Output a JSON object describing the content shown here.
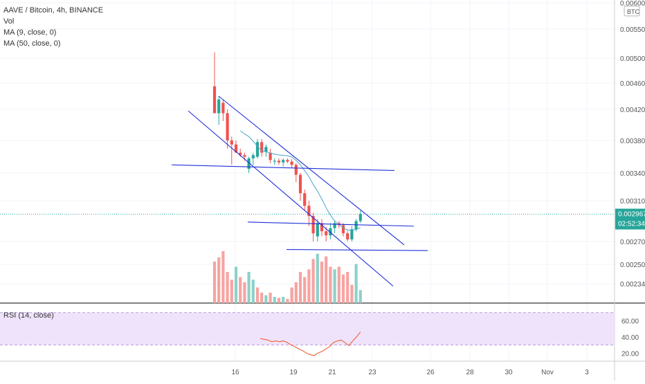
{
  "header": {
    "symbol_line": "AAVE / Bitcoin, 4h, BINANCE",
    "indicators": [
      "Vol",
      "MA (9, close, 0)",
      "MA (50, close, 0)"
    ]
  },
  "rsi": {
    "label": "RSI (14, close)",
    "upper": 70,
    "lower": 30,
    "values": [
      38,
      37,
      36,
      34,
      35,
      34,
      35,
      33,
      30,
      28,
      25,
      23,
      20,
      18,
      17,
      20,
      22,
      25,
      28,
      33,
      35,
      36,
      33,
      29,
      35,
      40,
      46
    ]
  },
  "price_badge": {
    "value": "0.002967",
    "countdown": "02:52:34"
  },
  "colors": {
    "up": "#26a69a",
    "down": "#ef5350",
    "trendline": "#1f2fd8",
    "ma": "#4aa3c8",
    "rsi_line": "#f4511e",
    "rsi_band": "#efe3fb",
    "rsi_band_border": "#b39ddb",
    "last_price": "#26a69a"
  },
  "chart_data": [
    {
      "type": "candlestick",
      "title": "AAVE / Bitcoin, 4h, BINANCE",
      "unit": "BTC",
      "y_ticks": [
        "0.006000",
        "0.005500",
        "0.005000",
        "0.004600",
        "0.004200",
        "0.003800",
        "0.003400",
        "0.003100",
        "0.002700",
        "0.002500",
        "0.002340"
      ],
      "x_ticks": [
        "16",
        "19",
        "21",
        "23",
        "26",
        "28",
        "30",
        "Nov",
        "3"
      ],
      "grid": true,
      "legend": "top-left",
      "candles": [
        {
          "o": 0.00455,
          "h": 0.0051,
          "l": 0.00415,
          "c": 0.00415
        },
        {
          "o": 0.00415,
          "h": 0.0044,
          "l": 0.004,
          "c": 0.00435
        },
        {
          "o": 0.0043,
          "h": 0.00435,
          "l": 0.00405,
          "c": 0.00415
        },
        {
          "o": 0.00415,
          "h": 0.0042,
          "l": 0.0037,
          "c": 0.0038
        },
        {
          "o": 0.0038,
          "h": 0.00385,
          "l": 0.0035,
          "c": 0.00375
        },
        {
          "o": 0.00375,
          "h": 0.0038,
          "l": 0.00365,
          "c": 0.00365
        },
        {
          "o": 0.00365,
          "h": 0.0037,
          "l": 0.0036,
          "c": 0.00362
        },
        {
          "o": 0.00362,
          "h": 0.00365,
          "l": 0.00355,
          "c": 0.0036
        },
        {
          "o": 0.00345,
          "h": 0.0036,
          "l": 0.0034,
          "c": 0.00358
        },
        {
          "o": 0.00358,
          "h": 0.00365,
          "l": 0.0035,
          "c": 0.00362
        },
        {
          "o": 0.0036,
          "h": 0.00382,
          "l": 0.00358,
          "c": 0.00378
        },
        {
          "o": 0.00378,
          "h": 0.00382,
          "l": 0.0036,
          "c": 0.00365
        },
        {
          "o": 0.00366,
          "h": 0.00375,
          "l": 0.0036,
          "c": 0.00372
        },
        {
          "o": 0.00365,
          "h": 0.0037,
          "l": 0.00352,
          "c": 0.00356
        },
        {
          "o": 0.00354,
          "h": 0.00358,
          "l": 0.0035,
          "c": 0.00355
        },
        {
          "o": 0.00355,
          "h": 0.00358,
          "l": 0.0035,
          "c": 0.00353
        },
        {
          "o": 0.00353,
          "h": 0.00358,
          "l": 0.00348,
          "c": 0.00356
        },
        {
          "o": 0.00356,
          "h": 0.00358,
          "l": 0.00352,
          "c": 0.00354
        },
        {
          "o": 0.00354,
          "h": 0.00357,
          "l": 0.00346,
          "c": 0.0035
        },
        {
          "o": 0.0035,
          "h": 0.00352,
          "l": 0.0033,
          "c": 0.00338
        },
        {
          "o": 0.00338,
          "h": 0.0034,
          "l": 0.0031,
          "c": 0.00318
        },
        {
          "o": 0.00318,
          "h": 0.00322,
          "l": 0.003,
          "c": 0.00305
        },
        {
          "o": 0.00305,
          "h": 0.0031,
          "l": 0.00285,
          "c": 0.00295
        },
        {
          "o": 0.00295,
          "h": 0.00298,
          "l": 0.0027,
          "c": 0.00278
        },
        {
          "o": 0.00275,
          "h": 0.00292,
          "l": 0.0027,
          "c": 0.00288
        },
        {
          "o": 0.00288,
          "h": 0.00292,
          "l": 0.00275,
          "c": 0.0028
        },
        {
          "o": 0.0028,
          "h": 0.00284,
          "l": 0.0027,
          "c": 0.00276
        },
        {
          "o": 0.00276,
          "h": 0.00288,
          "l": 0.00272,
          "c": 0.00283
        },
        {
          "o": 0.00283,
          "h": 0.0029,
          "l": 0.00278,
          "c": 0.00288
        },
        {
          "o": 0.00288,
          "h": 0.0029,
          "l": 0.00283,
          "c": 0.00286
        },
        {
          "o": 0.00286,
          "h": 0.00288,
          "l": 0.00275,
          "c": 0.00278
        },
        {
          "o": 0.00278,
          "h": 0.0028,
          "l": 0.0027,
          "c": 0.00272
        },
        {
          "o": 0.00272,
          "h": 0.00285,
          "l": 0.0027,
          "c": 0.00282
        },
        {
          "o": 0.00282,
          "h": 0.00292,
          "l": 0.0028,
          "c": 0.0029
        },
        {
          "o": 0.0029,
          "h": 0.003,
          "l": 0.00288,
          "c": 0.00297
        }
      ],
      "volume": [
        {
          "v": 0.8,
          "up": false
        },
        {
          "v": 0.88,
          "up": false
        },
        {
          "v": 1.0,
          "up": false
        },
        {
          "v": 0.6,
          "up": false
        },
        {
          "v": 0.45,
          "up": false
        },
        {
          "v": 0.7,
          "up": true
        },
        {
          "v": 0.5,
          "up": false
        },
        {
          "v": 0.4,
          "up": false
        },
        {
          "v": 0.6,
          "up": true
        },
        {
          "v": 0.45,
          "up": true
        },
        {
          "v": 0.3,
          "up": false
        },
        {
          "v": 0.2,
          "up": false
        },
        {
          "v": 0.15,
          "up": true
        },
        {
          "v": 0.2,
          "up": false
        },
        {
          "v": 0.12,
          "up": true
        },
        {
          "v": 0.1,
          "up": false
        },
        {
          "v": 0.12,
          "up": true
        },
        {
          "v": 0.08,
          "up": false
        },
        {
          "v": 0.3,
          "up": false
        },
        {
          "v": 0.4,
          "up": false
        },
        {
          "v": 0.6,
          "up": false
        },
        {
          "v": 0.5,
          "up": false
        },
        {
          "v": 0.65,
          "up": false
        },
        {
          "v": 0.85,
          "up": false
        },
        {
          "v": 0.95,
          "up": true
        },
        {
          "v": 0.8,
          "up": false
        },
        {
          "v": 0.9,
          "up": false
        },
        {
          "v": 0.7,
          "up": false
        },
        {
          "v": 0.65,
          "up": true
        },
        {
          "v": 0.7,
          "up": false
        },
        {
          "v": 0.55,
          "up": false
        },
        {
          "v": 0.6,
          "up": false
        },
        {
          "v": 0.35,
          "up": false
        },
        {
          "v": 0.75,
          "up": true
        },
        {
          "v": 0.25,
          "up": true
        }
      ]
    }
  ]
}
